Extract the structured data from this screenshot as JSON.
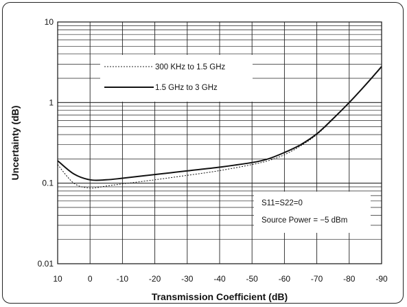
{
  "chart_data": {
    "type": "line",
    "xlabel": "Transmission Coefficient (dB)",
    "ylabel": "Uncertainty (dB)",
    "xlim": [
      10,
      -90
    ],
    "ylim": [
      0.01,
      10
    ],
    "yscale": "log",
    "grid": true,
    "legend_position": "top-left",
    "x_ticks": [
      10,
      0,
      -10,
      -20,
      -30,
      -40,
      -50,
      -60,
      -70,
      -80,
      -90
    ],
    "x_tick_labels": [
      "10",
      "0",
      "-10",
      "-20",
      "-30",
      "-40",
      "-50",
      "-60",
      "-70",
      "-80",
      "-90"
    ],
    "y_ticks": [
      0.01,
      0.1,
      1,
      10
    ],
    "y_tick_labels": [
      "0.01",
      "0.1",
      "1",
      "10"
    ],
    "series": [
      {
        "name": "300 KHz to 1.5 GHz",
        "style": "dotted",
        "x": [
          10,
          5,
          0,
          -5,
          -10,
          -20,
          -30,
          -40,
          -50,
          -55,
          -60,
          -65,
          -70,
          -75,
          -80,
          -85,
          -90
        ],
        "y": [
          0.17,
          0.1,
          0.087,
          0.092,
          0.098,
          0.11,
          0.125,
          0.143,
          0.17,
          0.19,
          0.225,
          0.29,
          0.4,
          0.62,
          1.0,
          1.65,
          2.8
        ]
      },
      {
        "name": "1.5 GHz to 3 GHz",
        "style": "solid",
        "x": [
          10,
          5,
          0,
          -5,
          -10,
          -20,
          -30,
          -40,
          -50,
          -55,
          -60,
          -65,
          -70,
          -75,
          -80,
          -85,
          -90
        ],
        "y": [
          0.19,
          0.13,
          0.11,
          0.11,
          0.115,
          0.128,
          0.142,
          0.158,
          0.18,
          0.2,
          0.24,
          0.3,
          0.41,
          0.63,
          1.0,
          1.65,
          2.8
        ]
      }
    ],
    "annotation": {
      "lines": [
        "S11=S22=0",
        "Source Power = −5 dBm"
      ]
    }
  }
}
